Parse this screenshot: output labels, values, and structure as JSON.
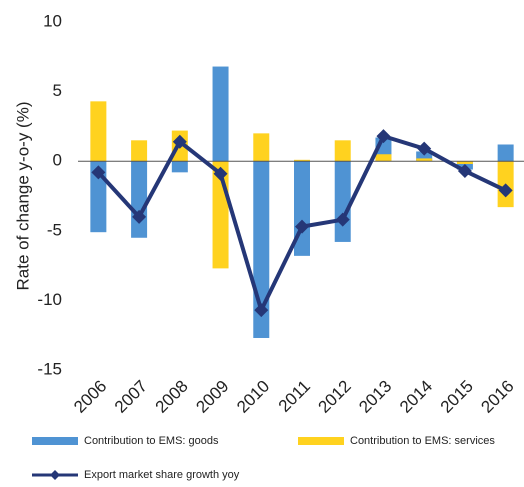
{
  "chart_data": {
    "type": "bar_line",
    "ylabel": "Rate of change y-o-y (%)",
    "categories": [
      "2006",
      "2007",
      "2008",
      "2009",
      "2010",
      "2011",
      "2012",
      "2013",
      "2014",
      "2015",
      "2016"
    ],
    "series": [
      {
        "name": "Contribution to EMS: goods",
        "type": "bar",
        "color": "#4f93d3",
        "values": [
          -5.1,
          -5.5,
          -0.8,
          6.8,
          -12.7,
          -6.8,
          -5.8,
          1.7,
          0.7,
          -0.6,
          1.2
        ]
      },
      {
        "name": "Contribution to EMS: services",
        "type": "bar",
        "color": "#ffd21f",
        "values": [
          4.3,
          1.5,
          2.2,
          -7.7,
          2.0,
          0.1,
          1.5,
          0.5,
          0.2,
          -0.2,
          -3.3
        ]
      },
      {
        "name": "Export market share growth yoy",
        "type": "line",
        "color": "#253777",
        "values": [
          -0.8,
          -4.0,
          1.4,
          -0.9,
          -10.7,
          -4.7,
          -4.2,
          1.8,
          0.9,
          -0.7,
          -2.1
        ]
      }
    ],
    "ylim": [
      -15,
      10
    ],
    "yticks": [
      -15,
      -10,
      -5,
      0,
      5,
      10
    ],
    "grid": false
  }
}
